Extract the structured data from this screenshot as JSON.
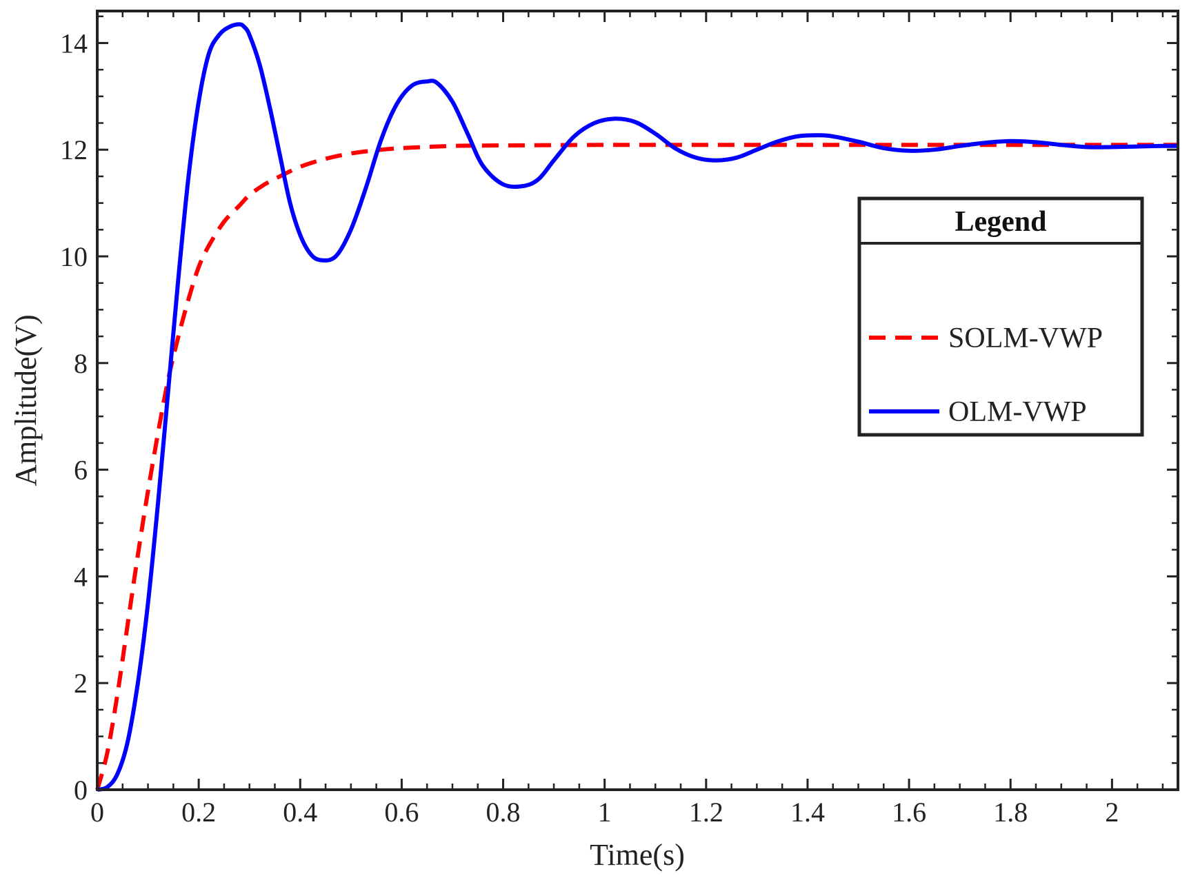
{
  "chart_data": {
    "type": "line",
    "title": "",
    "xlabel": "Time(s)",
    "ylabel": "Amplitude(V)",
    "xlim": [
      0,
      2.13
    ],
    "ylim": [
      0,
      14.6
    ],
    "xticks": [
      0,
      0.2,
      0.4,
      0.6,
      0.8,
      1,
      1.2,
      1.4,
      1.6,
      1.8,
      2
    ],
    "xtick_labels": [
      "0",
      "0.2",
      "0.4",
      "0.6",
      "0.8",
      "1",
      "1.2",
      "1.4",
      "1.6",
      "1.8",
      "2"
    ],
    "yticks": [
      0,
      2,
      4,
      6,
      8,
      10,
      12,
      14
    ],
    "ytick_labels": [
      "0",
      "2",
      "4",
      "6",
      "8",
      "10",
      "12",
      "14"
    ],
    "grid": false,
    "legend": {
      "title": "Legend",
      "position": "right"
    },
    "series": [
      {
        "name": "SOLM-VWP",
        "color": "#ff0000",
        "style": "dashed",
        "x": [
          0,
          0.02,
          0.04,
          0.06,
          0.08,
          0.1,
          0.12,
          0.14,
          0.16,
          0.18,
          0.2,
          0.22,
          0.25,
          0.28,
          0.3,
          0.33,
          0.36,
          0.4,
          0.45,
          0.5,
          0.55,
          0.6,
          0.7,
          0.8,
          1.0,
          1.2,
          1.5,
          1.8,
          2.13
        ],
        "values": [
          0,
          0.7,
          1.8,
          3.1,
          4.4,
          5.6,
          6.7,
          7.7,
          8.5,
          9.2,
          9.8,
          10.2,
          10.65,
          10.95,
          11.15,
          11.35,
          11.5,
          11.68,
          11.83,
          11.93,
          11.99,
          12.03,
          12.07,
          12.08,
          12.09,
          12.09,
          12.09,
          12.09,
          12.09
        ]
      },
      {
        "name": "OLM-VWP",
        "color": "#0000ff",
        "style": "solid",
        "x": [
          0,
          0.02,
          0.04,
          0.06,
          0.08,
          0.1,
          0.12,
          0.14,
          0.16,
          0.18,
          0.2,
          0.22,
          0.24,
          0.26,
          0.28,
          0.29,
          0.3,
          0.32,
          0.34,
          0.36,
          0.38,
          0.4,
          0.42,
          0.44,
          0.47,
          0.5,
          0.53,
          0.56,
          0.59,
          0.62,
          0.65,
          0.67,
          0.7,
          0.73,
          0.76,
          0.8,
          0.84,
          0.87,
          0.9,
          0.94,
          0.98,
          1.02,
          1.06,
          1.1,
          1.14,
          1.18,
          1.22,
          1.26,
          1.3,
          1.34,
          1.38,
          1.42,
          1.45,
          1.5,
          1.55,
          1.6,
          1.65,
          1.7,
          1.75,
          1.8,
          1.85,
          1.9,
          1.95,
          2.0,
          2.05,
          2.1,
          2.13
        ],
        "values": [
          0,
          0.05,
          0.3,
          0.9,
          2.0,
          3.5,
          5.4,
          7.5,
          9.6,
          11.5,
          12.9,
          13.8,
          14.15,
          14.3,
          14.35,
          14.3,
          14.15,
          13.6,
          12.8,
          11.9,
          11.0,
          10.4,
          10.05,
          9.93,
          10.0,
          10.5,
          11.3,
          12.2,
          12.85,
          13.2,
          13.28,
          13.25,
          12.9,
          12.3,
          11.7,
          11.35,
          11.32,
          11.45,
          11.8,
          12.25,
          12.5,
          12.58,
          12.52,
          12.3,
          12.02,
          11.85,
          11.8,
          11.85,
          12.0,
          12.15,
          12.25,
          12.27,
          12.25,
          12.15,
          12.03,
          11.98,
          12.0,
          12.07,
          12.13,
          12.16,
          12.14,
          12.09,
          12.05,
          12.05,
          12.06,
          12.07,
          12.07
        ]
      }
    ]
  }
}
